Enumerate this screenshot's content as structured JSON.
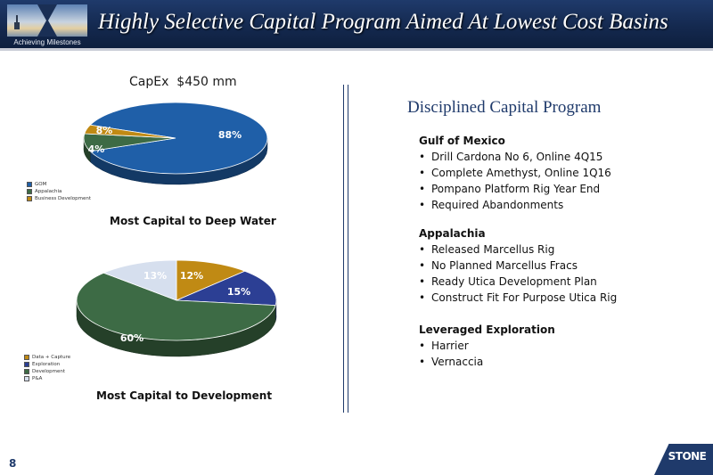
{
  "header": {
    "title": "Highly Selective Capital Program Aimed At Lowest Cost Basins",
    "logo_caption": "Achieving Milestones"
  },
  "capex_label": "CapEx",
  "capex_value": "$450 mm",
  "chart_data": [
    {
      "type": "pie",
      "categories": [
        "GOM",
        "Appalachia",
        "Business Development"
      ],
      "values": [
        88,
        8,
        4
      ],
      "data_labels": [
        "88%",
        "8%",
        "4%"
      ],
      "colors": [
        "#1f5fa8",
        "#3d6b45",
        "#c08a14"
      ],
      "legend_placement": "bottom-left",
      "caption": "Most Capital to Deep Water"
    },
    {
      "type": "pie",
      "categories": [
        "Data + Capture",
        "Exploration",
        "Development",
        "P&A"
      ],
      "values": [
        12,
        15,
        60,
        13
      ],
      "data_labels": [
        "12%",
        "15%",
        "60%",
        "13%"
      ],
      "colors": [
        "#c08a14",
        "#2c3f94",
        "#3d6b45",
        "#d6dfee"
      ],
      "legend_placement": "bottom-left",
      "caption": "Most Capital to Development"
    }
  ],
  "right": {
    "title": "Disciplined Capital Program",
    "sections": [
      {
        "heading": "Gulf of Mexico",
        "items": [
          "Drill Cardona No 6, Online 4Q15",
          "Complete Amethyst, Online 1Q16",
          "Pompano Platform Rig Year End",
          "Required Abandonments"
        ]
      },
      {
        "heading": "Appalachia",
        "items": [
          "Released Marcellus Rig",
          "No Planned Marcellus Fracs",
          "Ready Utica Development Plan",
          "Construct Fit For Purpose Utica Rig"
        ]
      },
      {
        "heading": "Leveraged Exploration",
        "items": [
          "Harrier",
          "Vernaccia"
        ]
      }
    ]
  },
  "footer": {
    "page_number": "8",
    "logo_text": "STONE"
  }
}
